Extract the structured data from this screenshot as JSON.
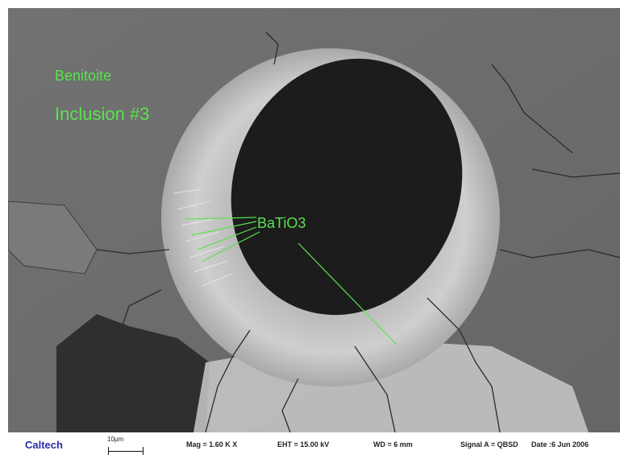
{
  "image": {
    "annotation_color": "#59e24f",
    "labels": {
      "mineral": "Benitoite",
      "inclusion": "Inclusion #3",
      "phase": "BaTiO3"
    }
  },
  "info_bar": {
    "organization": "Caltech",
    "scale_bar_label": "10µm",
    "magnification": "Mag =  1.60 K X",
    "eht": "EHT = 15.00 kV",
    "working_distance": "WD =   6 mm",
    "signal": "Signal A = QBSD",
    "date": "Date :6 Jun 2006",
    "organization_color": "#2a2aa6"
  }
}
